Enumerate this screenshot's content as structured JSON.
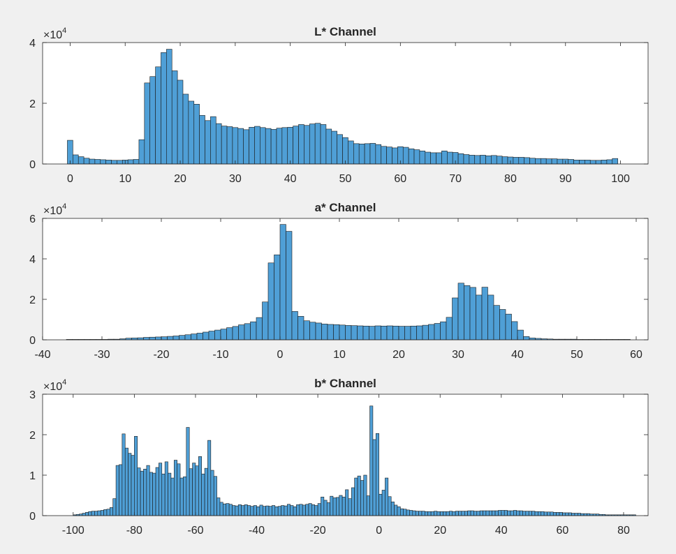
{
  "figure": {
    "background": "#f0f0f0",
    "bar_color": "#4f9fd6",
    "bar_edge": "#1a1a1a"
  },
  "chart_data": [
    {
      "type": "bar",
      "title": "L* Channel",
      "xlabel": "",
      "ylabel": "",
      "xlim": [
        -5,
        105
      ],
      "ylim": [
        0,
        40000
      ],
      "multiplier": "×10",
      "exponent": "4",
      "x_ticks": [
        0,
        10,
        20,
        30,
        40,
        50,
        60,
        70,
        80,
        90,
        100
      ],
      "y_ticks": [
        0,
        20000,
        40000
      ],
      "y_tick_labels": [
        "0",
        "2",
        "4"
      ],
      "bin_start": -0.5,
      "bin_width": 1,
      "values": [
        7800,
        3000,
        2400,
        1900,
        1600,
        1500,
        1400,
        1300,
        1200,
        1200,
        1300,
        1400,
        1500,
        8000,
        26700,
        28800,
        32000,
        36700,
        37800,
        30700,
        27600,
        23000,
        20700,
        19700,
        16000,
        14300,
        15600,
        13300,
        12500,
        12300,
        12000,
        11700,
        11300,
        12100,
        12400,
        12000,
        11700,
        11400,
        11800,
        12000,
        12100,
        12500,
        13000,
        12700,
        13200,
        13400,
        13000,
        11500,
        10800,
        9700,
        8700,
        7600,
        6700,
        6600,
        6700,
        6800,
        6400,
        5800,
        5600,
        5300,
        5700,
        5500,
        5000,
        4700,
        4300,
        3900,
        3700,
        3700,
        4300,
        3900,
        3800,
        3400,
        3100,
        2900,
        2800,
        2900,
        2700,
        2800,
        2600,
        2400,
        2300,
        2200,
        2200,
        2100,
        1900,
        1800,
        1800,
        1700,
        1700,
        1600,
        1600,
        1500,
        1300,
        1300,
        1300,
        1200,
        1200,
        1300,
        1400,
        1800
      ]
    },
    {
      "type": "bar",
      "title": "a* Channel",
      "xlabel": "",
      "ylabel": "",
      "xlim": [
        -40,
        62
      ],
      "ylim": [
        0,
        60000
      ],
      "multiplier": "×10",
      "exponent": "4",
      "x_ticks": [
        -40,
        -30,
        -20,
        -10,
        0,
        10,
        20,
        30,
        40,
        50,
        60
      ],
      "y_ticks": [
        0,
        20000,
        40000,
        60000
      ],
      "y_tick_labels": [
        "0",
        "2",
        "4",
        "6"
      ],
      "bin_start": -36,
      "bin_width": 1,
      "values": [
        200,
        200,
        200,
        200,
        200,
        200,
        200,
        300,
        300,
        500,
        800,
        900,
        1000,
        1200,
        1300,
        1400,
        1500,
        1700,
        1900,
        2200,
        2500,
        2900,
        3300,
        3800,
        4300,
        4800,
        5300,
        6000,
        6600,
        7400,
        8000,
        8900,
        11000,
        18700,
        38000,
        42000,
        57000,
        53600,
        14000,
        11600,
        9400,
        8700,
        8300,
        7800,
        7600,
        7500,
        7300,
        7100,
        7000,
        6900,
        6800,
        6700,
        6900,
        6800,
        6900,
        6800,
        6700,
        6700,
        6800,
        6900,
        7200,
        7600,
        8100,
        8900,
        11100,
        20700,
        28000,
        26800,
        25900,
        22100,
        26000,
        22100,
        17000,
        15000,
        12700,
        9000,
        4800,
        1600,
        900,
        700,
        500,
        400,
        300,
        300,
        300,
        300,
        200,
        200,
        200,
        200,
        200,
        200,
        200,
        200,
        200
      ]
    },
    {
      "type": "bar",
      "title": "b* Channel",
      "xlabel": "",
      "ylabel": "",
      "xlim": [
        -110,
        88
      ],
      "ylim": [
        0,
        30000
      ],
      "multiplier": "×10",
      "exponent": "4",
      "x_ticks": [
        -100,
        -80,
        -60,
        -40,
        -20,
        0,
        20,
        40,
        60,
        80
      ],
      "y_ticks": [
        0,
        10000,
        20000,
        30000
      ],
      "y_tick_labels": [
        "0",
        "1",
        "2",
        "3"
      ],
      "bin_start": -100,
      "bin_width": 1,
      "values": [
        200,
        300,
        400,
        600,
        800,
        1000,
        1100,
        1100,
        1200,
        1300,
        1500,
        1600,
        2000,
        4200,
        12400,
        12600,
        20200,
        16700,
        15400,
        14900,
        19600,
        11800,
        11000,
        11500,
        12400,
        10700,
        10500,
        11900,
        13000,
        10300,
        13300,
        10500,
        9300,
        13700,
        12800,
        9300,
        9600,
        21800,
        11600,
        13000,
        12300,
        14600,
        10300,
        11700,
        18600,
        11200,
        9700,
        4400,
        3300,
        2900,
        3000,
        2800,
        2500,
        2400,
        2700,
        2500,
        2700,
        2500,
        2300,
        2500,
        2200,
        2600,
        2300,
        2400,
        2300,
        2500,
        2200,
        2300,
        2500,
        2400,
        2800,
        2500,
        2200,
        2700,
        2800,
        2600,
        2800,
        3000,
        2700,
        2500,
        3000,
        4600,
        3800,
        3200,
        4800,
        4400,
        4500,
        5000,
        4600,
        6400,
        4200,
        6900,
        9300,
        9800,
        8700,
        10000,
        4900,
        27100,
        18800,
        20300,
        5300,
        6300,
        9300,
        4700,
        3400,
        2600,
        2200,
        1700,
        1600,
        1400,
        1300,
        1200,
        1100,
        1100,
        1100,
        1000,
        1000,
        1000,
        1100,
        1000,
        1000,
        1000,
        1000,
        1100,
        1000,
        1100,
        1100,
        1100,
        1100,
        1200,
        1200,
        1100,
        1100,
        1200,
        1200,
        1200,
        1200,
        1200,
        1200,
        1300,
        1300,
        1300,
        1200,
        1200,
        1300,
        1200,
        1200,
        1100,
        1100,
        1100,
        1100,
        1000,
        1000,
        1000,
        900,
        900,
        900,
        800,
        800,
        800,
        700,
        700,
        700,
        600,
        600,
        600,
        500,
        500,
        500,
        400,
        400,
        400,
        300,
        300,
        200,
        200,
        200,
        200,
        200,
        200,
        200,
        200,
        200,
        200
      ]
    }
  ]
}
